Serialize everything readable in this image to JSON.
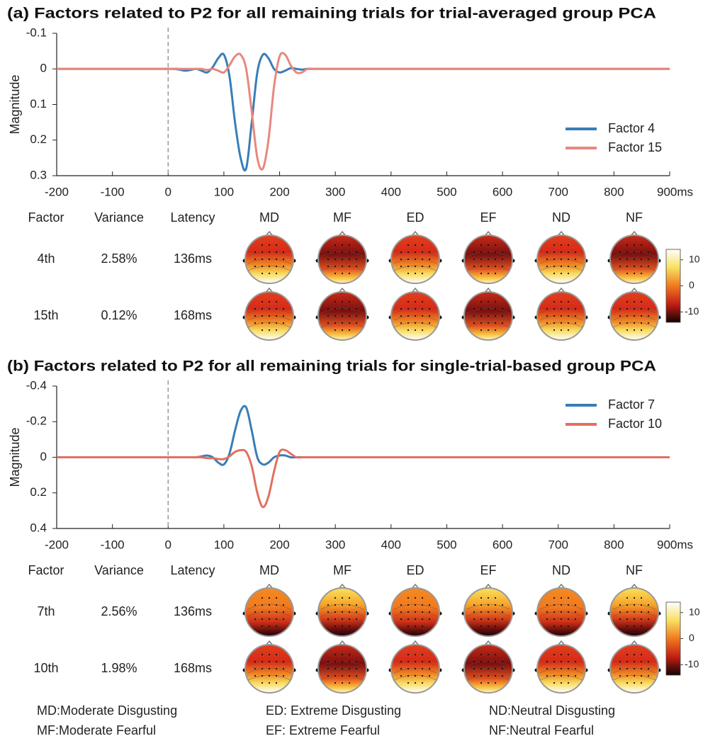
{
  "chart_data": [
    {
      "type": "line",
      "title": "(a) Factors related to P2 for all remaining trials for trial-averaged group PCA",
      "y_label": "Magnitude",
      "x": [
        -200,
        0,
        10,
        20,
        30,
        40,
        50,
        60,
        70,
        80,
        90,
        100,
        110,
        120,
        130,
        140,
        150,
        160,
        170,
        180,
        190,
        200,
        210,
        220,
        230,
        240,
        250,
        260,
        270,
        280,
        290,
        300,
        900
      ],
      "xlim": [
        -200,
        900
      ],
      "xticks": [
        -200,
        -100,
        0,
        100,
        200,
        300,
        400,
        500,
        600,
        700,
        800,
        {
          "value": 900,
          "label": "900ms"
        }
      ],
      "ylim": [
        -0.1,
        0.3
      ],
      "yticks": [
        -0.1,
        0,
        0.1,
        0.2,
        0.3
      ],
      "y_inverted": true,
      "vline": 0,
      "legend": "center right",
      "series": [
        {
          "name": "Factor 4",
          "color": "#3a7db6",
          "values": [
            0,
            0,
            0,
            0.002,
            0.005,
            0.003,
            0,
            0.005,
            0.01,
            -0.005,
            -0.03,
            -0.04,
            0.02,
            0.15,
            0.25,
            0.28,
            0.15,
            0.01,
            -0.04,
            -0.03,
            0,
            0.01,
            0.005,
            -0.002,
            0,
            0.002,
            0,
            0,
            0,
            0,
            0,
            0,
            0
          ]
        },
        {
          "name": "Factor 15",
          "color": "#e8887c",
          "values": [
            0,
            0,
            0,
            0,
            0,
            0,
            0,
            0,
            0.003,
            0,
            0.005,
            0.01,
            -0.01,
            -0.035,
            -0.04,
            0,
            0.12,
            0.25,
            0.28,
            0.2,
            0.05,
            -0.035,
            -0.04,
            -0.01,
            0.01,
            0.01,
            0,
            0,
            0,
            0,
            0,
            0,
            0
          ]
        }
      ],
      "table": {
        "columns": [
          "Factor",
          "Variance",
          "Latency"
        ],
        "conditions": [
          "MD",
          "MF",
          "ED",
          "EF",
          "ND",
          "NF"
        ],
        "rows": [
          [
            "4th",
            "2.58%",
            "136ms"
          ],
          [
            "15th",
            "0.12%",
            "168ms"
          ]
        ]
      },
      "colorbar": {
        "clim": [
          -14,
          14
        ],
        "ticks": [
          10,
          0,
          -10
        ]
      }
    },
    {
      "type": "line",
      "title": "(b) Factors related to P2 for all remaining trials for single-trial-based group PCA",
      "y_label": "Magnitude",
      "x": [
        -200,
        0,
        10,
        20,
        30,
        40,
        50,
        60,
        70,
        80,
        90,
        100,
        110,
        120,
        130,
        140,
        150,
        160,
        170,
        180,
        190,
        200,
        210,
        220,
        230,
        240,
        250,
        260,
        270,
        280,
        290,
        300,
        900
      ],
      "xlim": [
        -200,
        900
      ],
      "xticks": [
        -200,
        -100,
        0,
        100,
        200,
        300,
        400,
        500,
        600,
        700,
        800,
        {
          "value": 900,
          "label": "900ms"
        }
      ],
      "ylim": [
        -0.4,
        0.4
      ],
      "yticks": [
        -0.4,
        -0.2,
        0,
        0.2,
        0.4
      ],
      "y_inverted": true,
      "vline": 0,
      "legend": "upper right",
      "series": [
        {
          "name": "Factor 7",
          "color": "#3a7db6",
          "values": [
            0,
            0,
            0,
            0,
            0,
            0,
            0,
            -0.005,
            -0.01,
            0,
            0.03,
            0.04,
            -0.02,
            -0.15,
            -0.26,
            -0.28,
            -0.15,
            0,
            0.04,
            0.03,
            0,
            -0.01,
            -0.01,
            0,
            0,
            0,
            0,
            0,
            0,
            0,
            0,
            0,
            0
          ]
        },
        {
          "name": "Factor 10",
          "color": "#e2705f",
          "values": [
            0,
            0,
            0,
            0,
            0,
            0,
            0,
            0,
            0.005,
            0.005,
            0.01,
            0.01,
            -0.005,
            -0.03,
            -0.04,
            -0.03,
            0.05,
            0.2,
            0.28,
            0.22,
            0.08,
            -0.03,
            -0.04,
            -0.02,
            0,
            0,
            0,
            0,
            0,
            0,
            0,
            0,
            0
          ]
        }
      ],
      "table": {
        "columns": [
          "Factor",
          "Variance",
          "Latency"
        ],
        "conditions": [
          "MD",
          "MF",
          "ED",
          "EF",
          "ND",
          "NF"
        ],
        "rows": [
          [
            "7th",
            "2.56%",
            "136ms"
          ],
          [
            "10th",
            "1.98%",
            "168ms"
          ]
        ]
      },
      "colorbar": {
        "clim": [
          -14,
          14
        ],
        "ticks": [
          10,
          0,
          -10
        ]
      }
    }
  ],
  "notes": [
    "MD:Moderate Disgusting",
    "MF:Moderate Fearful",
    "ED: Extreme Disgusting",
    "EF: Extreme Fearful",
    "ND:Neutral Disgusting",
    "NF:Neutral Fearful"
  ]
}
